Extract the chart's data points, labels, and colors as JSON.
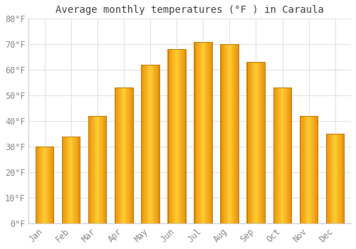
{
  "title": "Average monthly temperatures (°F ) in Caraula",
  "months": [
    "Jan",
    "Feb",
    "Mar",
    "Apr",
    "May",
    "Jun",
    "Jul",
    "Aug",
    "Sep",
    "Oct",
    "Nov",
    "Dec"
  ],
  "values": [
    30,
    34,
    42,
    53,
    62,
    68,
    71,
    70,
    63,
    53,
    42,
    35
  ],
  "bar_color_dark": "#E8900A",
  "bar_color_light": "#FFCC33",
  "background_color": "#FFFFFF",
  "plot_bg_color": "#FFFFFF",
  "grid_color": "#E0E0E8",
  "ylim": [
    0,
    80
  ],
  "yticks": [
    0,
    10,
    20,
    30,
    40,
    50,
    60,
    70,
    80
  ],
  "ytick_labels": [
    "0°F",
    "10°F",
    "20°F",
    "30°F",
    "40°F",
    "50°F",
    "60°F",
    "70°F",
    "80°F"
  ],
  "title_fontsize": 10,
  "tick_fontsize": 8.5,
  "title_color": "#444444",
  "tick_color": "#888888",
  "bar_width": 0.68
}
